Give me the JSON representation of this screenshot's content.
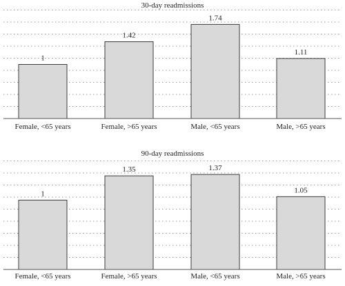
{
  "chart_data": [
    {
      "type": "bar",
      "title": "30-day readmissions",
      "categories": [
        "Female, <65 years",
        "Female, >65 years",
        "Male, <65 years",
        "Male, >65 years"
      ],
      "values": [
        1,
        1.42,
        1.74,
        1.11
      ],
      "value_labels": [
        "1",
        "1.42",
        "1.74",
        "1.11"
      ],
      "ylim": [
        0,
        2
      ],
      "grid": true,
      "colors": {
        "bar_fill": "#d9d9d9",
        "bar_stroke": "#3a3a3a",
        "grid": "#9a9a9a"
      }
    },
    {
      "type": "bar",
      "title": "90-day readmissions",
      "categories": [
        "Female, <65 years",
        "Female, >65 years",
        "Male, <65 years",
        "Male, >65 years"
      ],
      "values": [
        1,
        1.35,
        1.37,
        1.05
      ],
      "value_labels": [
        "1",
        "1.35",
        "1.37",
        "1.05"
      ],
      "ylim": [
        0,
        1.6
      ],
      "grid": true,
      "colors": {
        "bar_fill": "#d9d9d9",
        "bar_stroke": "#3a3a3a",
        "grid": "#9a9a9a"
      }
    }
  ]
}
